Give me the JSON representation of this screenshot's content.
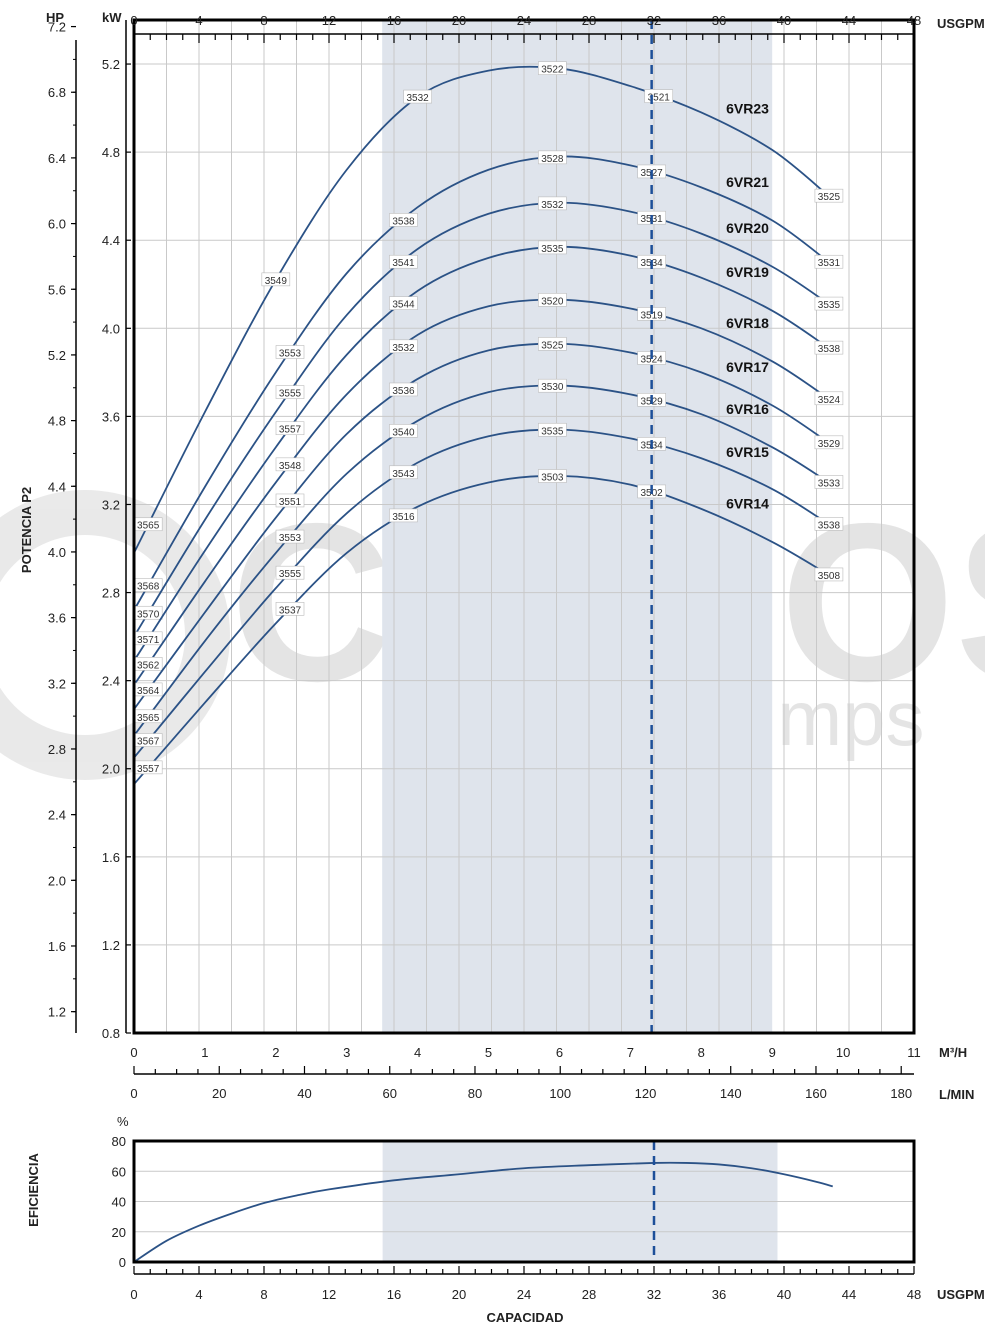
{
  "watermark": {
    "brand": "CINBOS",
    "tagline": "Water Pumps"
  },
  "colors": {
    "curve": "#2b5286",
    "band": "#dfe4ec",
    "duty_line": "#1d4f99",
    "frame": "#000000"
  },
  "chart_data": [
    {
      "type": "line",
      "title": "",
      "ylabel": "POTENCIA P2",
      "xlabel": "",
      "grid": true,
      "units": {
        "hp": "HP",
        "kw": "kW",
        "usgpm": "USGPM",
        "m3h": "M³/H",
        "lmin": "L/MIN"
      },
      "x_axes": {
        "usgpm": {
          "range": [
            0,
            48
          ],
          "ticks": [
            0,
            4,
            8,
            12,
            16,
            20,
            24,
            28,
            32,
            36,
            40,
            44,
            48
          ]
        },
        "m3h": {
          "range": [
            0,
            11
          ],
          "ticks": [
            0,
            1,
            2,
            3,
            4,
            5,
            6,
            7,
            8,
            9,
            10,
            11
          ]
        },
        "lmin": {
          "range": [
            0,
            183
          ],
          "ticks": [
            0,
            20,
            40,
            60,
            80,
            100,
            120,
            140,
            160,
            180
          ]
        }
      },
      "y_axes": {
        "kw": {
          "range": [
            0.8,
            5.4
          ],
          "ticks": [
            0.8,
            1.2,
            1.6,
            2.0,
            2.4,
            2.8,
            3.2,
            3.6,
            4.0,
            4.4,
            4.8,
            5.2
          ]
        },
        "hp": {
          "range": [
            1.07,
            7.24
          ],
          "ticks": [
            1.2,
            1.6,
            2.0,
            2.4,
            2.8,
            3.2,
            3.6,
            4.0,
            4.4,
            4.8,
            5.2,
            5.6,
            6.0,
            6.4,
            6.8,
            7.2
          ]
        }
      },
      "shaded_range_m3h": [
        3.5,
        9.0
      ],
      "duty_line_m3h": 7.3,
      "series": [
        {
          "name": "6VR23",
          "values": [
            [
              0,
              2.98
            ],
            [
              1,
              3.62
            ],
            [
              2,
              4.22
            ],
            [
              3,
              4.72
            ],
            [
              4,
              5.05
            ],
            [
              5,
              5.17
            ],
            [
              6,
              5.18
            ],
            [
              7,
              5.1
            ],
            [
              8,
              4.98
            ],
            [
              9,
              4.81
            ],
            [
              9.8,
              4.6
            ]
          ],
          "labels": [
            {
              "x": 0.2,
              "text": "3565"
            },
            {
              "x": 2.0,
              "text": "3549"
            },
            {
              "x": 4.0,
              "text": "3532"
            },
            {
              "x": 5.9,
              "text": "3522"
            },
            {
              "x": 7.4,
              "text": "3521"
            },
            {
              "x": 9.8,
              "text": "3525"
            }
          ]
        },
        {
          "name": "6VR21",
          "values": [
            [
              0,
              2.72
            ],
            [
              1,
              3.28
            ],
            [
              2,
              3.8
            ],
            [
              3,
              4.25
            ],
            [
              4,
              4.55
            ],
            [
              5,
              4.72
            ],
            [
              6,
              4.78
            ],
            [
              7,
              4.74
            ],
            [
              8,
              4.64
            ],
            [
              9,
              4.49
            ],
            [
              9.8,
              4.3
            ]
          ],
          "labels": [
            {
              "x": 0.2,
              "text": "3568"
            },
            {
              "x": 2.2,
              "text": "3553"
            },
            {
              "x": 3.8,
              "text": "3538"
            },
            {
              "x": 5.9,
              "text": "3528"
            },
            {
              "x": 7.3,
              "text": "3527"
            },
            {
              "x": 9.8,
              "text": "3531"
            }
          ]
        },
        {
          "name": "6VR20",
          "values": [
            [
              0,
              2.6
            ],
            [
              1,
              3.13
            ],
            [
              2,
              3.62
            ],
            [
              3,
              4.06
            ],
            [
              4,
              4.36
            ],
            [
              5,
              4.52
            ],
            [
              6,
              4.57
            ],
            [
              7,
              4.53
            ],
            [
              8,
              4.43
            ],
            [
              9,
              4.28
            ],
            [
              9.8,
              4.11
            ]
          ],
          "labels": [
            {
              "x": 0.2,
              "text": "3570"
            },
            {
              "x": 2.2,
              "text": "3555"
            },
            {
              "x": 3.8,
              "text": "3541"
            },
            {
              "x": 5.9,
              "text": "3532"
            },
            {
              "x": 7.3,
              "text": "3531"
            },
            {
              "x": 9.8,
              "text": "3535"
            }
          ]
        },
        {
          "name": "6VR19",
          "values": [
            [
              0,
              2.49
            ],
            [
              1,
              2.99
            ],
            [
              2,
              3.46
            ],
            [
              3,
              3.88
            ],
            [
              4,
              4.17
            ],
            [
              5,
              4.32
            ],
            [
              6,
              4.37
            ],
            [
              7,
              4.33
            ],
            [
              8,
              4.23
            ],
            [
              9,
              4.08
            ],
            [
              9.8,
              3.91
            ]
          ],
          "labels": [
            {
              "x": 0.2,
              "text": "3571"
            },
            {
              "x": 2.2,
              "text": "3557"
            },
            {
              "x": 3.8,
              "text": "3544"
            },
            {
              "x": 5.9,
              "text": "3535"
            },
            {
              "x": 7.3,
              "text": "3534"
            },
            {
              "x": 9.8,
              "text": "3538"
            }
          ]
        },
        {
          "name": "6VR18",
          "values": [
            [
              0,
              2.38
            ],
            [
              1,
              2.85
            ],
            [
              2,
              3.3
            ],
            [
              3,
              3.7
            ],
            [
              4,
              3.97
            ],
            [
              5,
              4.1
            ],
            [
              6,
              4.13
            ],
            [
              7,
              4.09
            ],
            [
              8,
              4.0
            ],
            [
              9,
              3.85
            ],
            [
              9.8,
              3.68
            ]
          ],
          "labels": [
            {
              "x": 0.2,
              "text": "3562"
            },
            {
              "x": 2.2,
              "text": "3548"
            },
            {
              "x": 3.8,
              "text": "3532"
            },
            {
              "x": 5.9,
              "text": "3520"
            },
            {
              "x": 7.3,
              "text": "3519"
            },
            {
              "x": 9.8,
              "text": "3524"
            }
          ]
        },
        {
          "name": "6VR17",
          "values": [
            [
              0,
              2.27
            ],
            [
              1,
              2.71
            ],
            [
              2,
              3.14
            ],
            [
              3,
              3.52
            ],
            [
              4,
              3.77
            ],
            [
              5,
              3.9
            ],
            [
              6,
              3.93
            ],
            [
              7,
              3.89
            ],
            [
              8,
              3.8
            ],
            [
              9,
              3.65
            ],
            [
              9.8,
              3.48
            ]
          ],
          "labels": [
            {
              "x": 0.2,
              "text": "3564"
            },
            {
              "x": 2.2,
              "text": "3551"
            },
            {
              "x": 3.8,
              "text": "3536"
            },
            {
              "x": 5.9,
              "text": "3525"
            },
            {
              "x": 7.3,
              "text": "3524"
            },
            {
              "x": 9.8,
              "text": "3529"
            }
          ]
        },
        {
          "name": "6VR16",
          "values": [
            [
              0,
              2.15
            ],
            [
              1,
              2.58
            ],
            [
              2,
              2.98
            ],
            [
              3,
              3.34
            ],
            [
              4,
              3.58
            ],
            [
              5,
              3.71
            ],
            [
              6,
              3.74
            ],
            [
              7,
              3.7
            ],
            [
              8,
              3.61
            ],
            [
              9,
              3.46
            ],
            [
              9.8,
              3.3
            ]
          ],
          "labels": [
            {
              "x": 0.2,
              "text": "3565"
            },
            {
              "x": 2.2,
              "text": "3553"
            },
            {
              "x": 3.8,
              "text": "3540"
            },
            {
              "x": 5.9,
              "text": "3530"
            },
            {
              "x": 7.3,
              "text": "3529"
            },
            {
              "x": 9.8,
              "text": "3533"
            }
          ]
        },
        {
          "name": "6VR15",
          "values": [
            [
              0,
              2.05
            ],
            [
              1,
              2.44
            ],
            [
              2,
              2.82
            ],
            [
              3,
              3.16
            ],
            [
              4,
              3.39
            ],
            [
              5,
              3.51
            ],
            [
              6,
              3.54
            ],
            [
              7,
              3.5
            ],
            [
              8,
              3.41
            ],
            [
              9,
              3.27
            ],
            [
              9.8,
              3.11
            ]
          ],
          "labels": [
            {
              "x": 0.2,
              "text": "3567"
            },
            {
              "x": 2.2,
              "text": "3555"
            },
            {
              "x": 3.8,
              "text": "3543"
            },
            {
              "x": 5.9,
              "text": "3535"
            },
            {
              "x": 7.3,
              "text": "3534"
            },
            {
              "x": 9.8,
              "text": "3538"
            }
          ]
        },
        {
          "name": "6VR14",
          "values": [
            [
              0,
              1.93
            ],
            [
              1,
              2.3
            ],
            [
              2,
              2.66
            ],
            [
              3,
              2.98
            ],
            [
              4,
              3.19
            ],
            [
              5,
              3.3
            ],
            [
              6,
              3.33
            ],
            [
              7,
              3.29
            ],
            [
              8,
              3.18
            ],
            [
              9,
              3.03
            ],
            [
              9.8,
              2.88
            ]
          ],
          "labels": [
            {
              "x": 0.2,
              "text": "3557"
            },
            {
              "x": 2.2,
              "text": "3537"
            },
            {
              "x": 3.8,
              "text": "3516"
            },
            {
              "x": 5.9,
              "text": "3503"
            },
            {
              "x": 7.3,
              "text": "3502"
            },
            {
              "x": 9.8,
              "text": "3508"
            }
          ]
        }
      ]
    },
    {
      "type": "line",
      "title": "",
      "ylabel": "EFICIENCIA",
      "yunit": "%",
      "xlabel": "CAPACIDAD",
      "xunit": "USGPM",
      "ylim": [
        0,
        80
      ],
      "yticks": [
        0,
        20,
        40,
        60,
        80
      ],
      "xlim": [
        0,
        48
      ],
      "xticks": [
        0,
        4,
        8,
        12,
        16,
        20,
        24,
        28,
        32,
        36,
        40,
        44,
        48
      ],
      "grid": true,
      "shaded_range_usgpm": [
        15.3,
        39.6
      ],
      "duty_line_usgpm": 32,
      "series": [
        {
          "values": [
            [
              0,
              0
            ],
            [
              2,
              14
            ],
            [
              4,
              24
            ],
            [
              6,
              32
            ],
            [
              8,
              39
            ],
            [
              10,
              44
            ],
            [
              12,
              48
            ],
            [
              16,
              54
            ],
            [
              20,
              58
            ],
            [
              24,
              62
            ],
            [
              28,
              64
            ],
            [
              32,
              65.5
            ],
            [
              34,
              65.5
            ],
            [
              36,
              64.5
            ],
            [
              38,
              62
            ],
            [
              40,
              58
            ],
            [
              42,
              53
            ],
            [
              43,
              50
            ]
          ]
        }
      ]
    }
  ]
}
